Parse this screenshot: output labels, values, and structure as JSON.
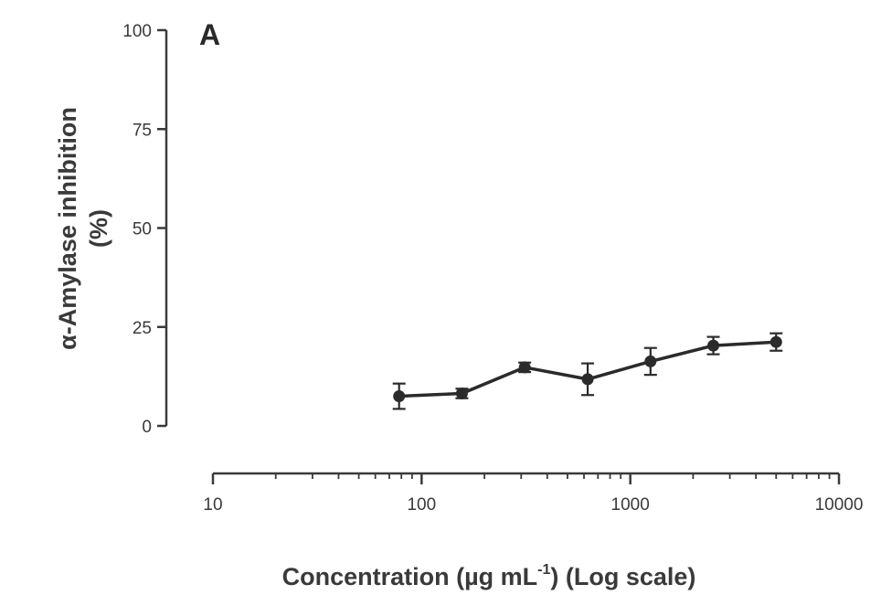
{
  "chart_data": {
    "type": "line",
    "panel_label": "A",
    "xlabel": "Concentration (µg mL",
    "xlabel_sup": "-1",
    "xlabel_suffix": ") (Log scale)",
    "ylabel_line1": "α-Amylase inhibition",
    "ylabel_line2": "(%)",
    "x_scale": "log",
    "xlim": [
      10,
      10000
    ],
    "ylim": [
      0,
      100
    ],
    "x_ticks": [
      10,
      100,
      1000,
      10000
    ],
    "x_tick_labels": [
      "10",
      "100",
      "1000",
      "10000"
    ],
    "y_ticks": [
      0,
      25,
      50,
      75,
      100
    ],
    "y_tick_labels": [
      "0",
      "25",
      "50",
      "75",
      "100"
    ],
    "grid": false,
    "series": [
      {
        "x": [
          78,
          156,
          312,
          625,
          1250,
          2500,
          5000
        ],
        "y": [
          7.5,
          8.2,
          14.8,
          11.8,
          16.3,
          20.3,
          21.2
        ],
        "error": [
          3.2,
          1.2,
          1.2,
          4.0,
          3.4,
          2.2,
          2.2
        ],
        "color": "#2b2b2b"
      }
    ]
  }
}
